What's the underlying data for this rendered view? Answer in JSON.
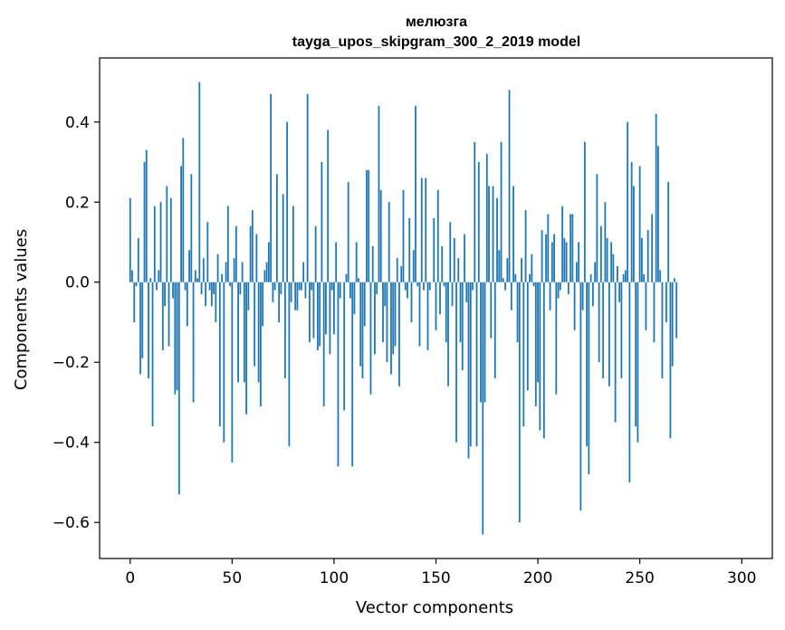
{
  "chart_data": {
    "type": "bar",
    "title": "мелюзга",
    "subtitle": "tayga_upos_skipgram_300_2_2019 model",
    "xlabel": "Vector components",
    "ylabel": "Components values",
    "xlim": [
      -15,
      315
    ],
    "ylim": [
      -0.69,
      0.56
    ],
    "xticks": [
      0,
      50,
      100,
      150,
      200,
      250,
      300
    ],
    "xtick_labels": [
      "0",
      "50",
      "100",
      "150",
      "200",
      "250",
      "300"
    ],
    "yticks": [
      -0.6,
      -0.4,
      -0.2,
      0.0,
      0.2,
      0.4
    ],
    "ytick_labels": [
      "−0.6",
      "−0.4",
      "−0.2",
      "0.0",
      "0.2",
      "0.4"
    ],
    "grid": false,
    "bar_color": "#1f77b4",
    "values": [
      0.21,
      0.03,
      -0.1,
      -0.01,
      0.11,
      -0.23,
      -0.19,
      0.3,
      0.33,
      -0.24,
      0.01,
      -0.36,
      0.19,
      -0.02,
      0.03,
      0.2,
      -0.17,
      -0.06,
      0.24,
      -0.16,
      0.21,
      -0.04,
      -0.28,
      -0.27,
      -0.53,
      0.29,
      0.36,
      -0.02,
      -0.11,
      0.08,
      0.27,
      -0.3,
      0.03,
      0.01,
      0.5,
      -0.03,
      0.06,
      -0.06,
      0.15,
      -0.02,
      -0.06,
      -0.03,
      -0.1,
      0.07,
      -0.36,
      0.02,
      -0.4,
      0.05,
      0.19,
      -0.01,
      -0.45,
      0.06,
      0.14,
      -0.25,
      -0.03,
      0.05,
      -0.25,
      -0.33,
      -0.07,
      0.14,
      0.18,
      -0.21,
      0.12,
      -0.25,
      -0.31,
      -0.11,
      0.03,
      0.05,
      0.1,
      0.47,
      -0.05,
      -0.02,
      0.27,
      -0.1,
      -0.03,
      0.22,
      -0.24,
      0.4,
      -0.41,
      -0.05,
      0.19,
      -0.07,
      -0.07,
      -0.02,
      -0.02,
      0.05,
      -0.04,
      0.47,
      -0.15,
      -0.02,
      -0.14,
      0.14,
      -0.17,
      -0.16,
      0.3,
      -0.31,
      -0.13,
      0.38,
      -0.18,
      -0.02,
      -0.13,
      0.1,
      -0.46,
      -0.04,
      0.0,
      -0.32,
      0.02,
      0.25,
      -0.04,
      -0.46,
      -0.08,
      0.1,
      0.01,
      -0.21,
      -0.24,
      -0.11,
      0.28,
      0.28,
      -0.28,
      0.09,
      -0.18,
      -0.03,
      0.44,
      0.23,
      -0.15,
      -0.06,
      -0.2,
      0.2,
      -0.23,
      -0.18,
      -0.16,
      0.06,
      -0.26,
      0.04,
      0.23,
      -0.02,
      -0.04,
      0.16,
      -0.1,
      0.08,
      0.44,
      -0.01,
      -0.16,
      0.26,
      -0.02,
      0.26,
      -0.17,
      -0.02,
      0.0,
      0.16,
      -0.12,
      0.23,
      -0.08,
      0.09,
      -0.01,
      -0.15,
      -0.26,
      0.15,
      -0.06,
      0.11,
      -0.4,
      0.06,
      -0.15,
      -0.22,
      0.12,
      -0.05,
      -0.44,
      -0.41,
      -0.02,
      0.35,
      -0.41,
      0.3,
      -0.3,
      -0.63,
      -0.3,
      0.32,
      0.24,
      -0.14,
      0.24,
      -0.24,
      0.21,
      0.08,
      0.35,
      0.01,
      -0.02,
      0.06,
      0.48,
      -0.07,
      0.24,
      0.02,
      -0.15,
      -0.6,
      0.06,
      -0.36,
      0.18,
      -0.27,
      0.02,
      0.07,
      -0.01,
      -0.31,
      -0.25,
      -0.37,
      0.13,
      -0.39,
      0.12,
      0.17,
      -0.07,
      0.1,
      0.12,
      -0.28,
      -0.04,
      -0.02,
      0.19,
      0.11,
      0.1,
      -0.03,
      0.17,
      0.17,
      -0.12,
      0.05,
      0.1,
      -0.57,
      -0.07,
      0.35,
      -0.41,
      -0.48,
      0.02,
      -0.06,
      0.05,
      0.27,
      -0.2,
      0.14,
      -0.24,
      0.2,
      0.11,
      -0.26,
      0.1,
      0.07,
      -0.35,
      0.04,
      -0.05,
      -0.24,
      0.02,
      0.03,
      0.4,
      -0.5,
      0.3,
      0.24,
      -0.36,
      -0.4,
      0.29,
      0.11,
      0.02,
      -0.12,
      0.13,
      0.0,
      0.17,
      -0.15,
      0.42,
      0.34,
      0.03,
      -0.24,
      0.0,
      -0.1,
      0.25,
      -0.39,
      -0.21,
      0.01,
      -0.14
    ],
    "x_start": 0
  }
}
